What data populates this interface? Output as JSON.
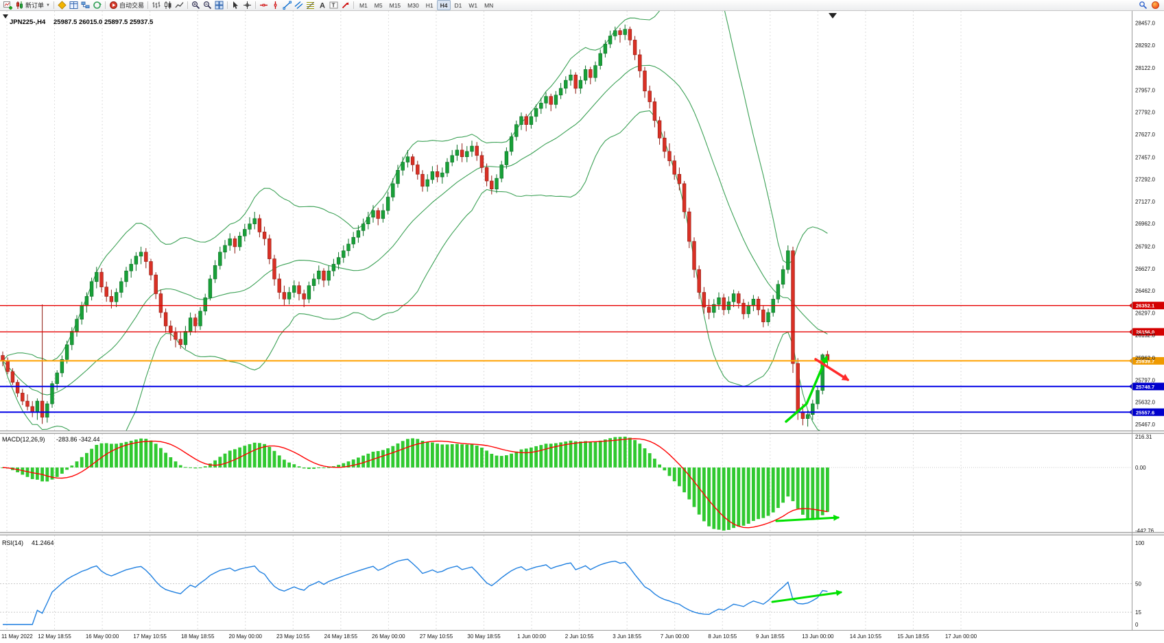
{
  "toolbar": {
    "new_order_label": "新订单",
    "autotrading_label": "自动交易",
    "timeframes": [
      "M1",
      "M5",
      "M15",
      "M30",
      "H1",
      "H4",
      "D1",
      "W1",
      "MN"
    ],
    "active_timeframe": "H4"
  },
  "symbol_info": {
    "symbol_period": "JPN225-,H4",
    "open": "25987.5",
    "high": "26015.0",
    "low": "25897.5",
    "close": "25937.5",
    "ohlc_text": "25987.5 26015.0 25897.5 25937.5"
  },
  "main_chart": {
    "bull_color": "#18a038",
    "bull_border": "#0b6e24",
    "bear_color": "#d93025",
    "bear_border": "#8f1a10",
    "band_color": "#3aa054",
    "price_axis": [
      "28457.0",
      "28292.0",
      "28122.0",
      "27957.0",
      "27792.0",
      "27627.0",
      "27457.0",
      "27292.0",
      "27127.0",
      "26962.0",
      "26792.0",
      "26627.0",
      "26462.0",
      "26297.0",
      "26132.0",
      "25962.0",
      "25797.0",
      "25632.0",
      "25467.0"
    ],
    "levels": [
      {
        "label": "26352.1",
        "value": 26352.1,
        "line_color": "#e60000",
        "badge_color": "#d40000",
        "width": 1.4
      },
      {
        "label": "26156.0",
        "value": 26156.0,
        "line_color": "#e60000",
        "badge_color": "#d40000",
        "width": 1.4
      },
      {
        "label": "25939.7",
        "value": 25939.7,
        "line_color": "#ffa000",
        "badge_color": "#ef9a00",
        "width": 2
      },
      {
        "label": "25748.7",
        "value": 25748.7,
        "line_color": "#0000e6",
        "badge_color": "#0000cc",
        "width": 2
      },
      {
        "label": "25557.6",
        "value": 25557.6,
        "line_color": "#0000e6",
        "badge_color": "#0000cc",
        "width": 2
      }
    ],
    "annotations": [
      {
        "name": "bullish-trend-arrow",
        "color": "#00e100",
        "marker": "green",
        "width": 3.5,
        "points": [
          [
            1146,
            615
          ],
          [
            1176,
            589
          ],
          [
            1205,
            521
          ]
        ]
      },
      {
        "name": "bearish-pullback-arrow",
        "color": "#ff2a2a",
        "marker": "red",
        "width": 3.5,
        "points": [
          [
            1189,
            524
          ],
          [
            1236,
            554
          ]
        ]
      },
      {
        "name": "macd-flat-arrow",
        "color": "#00e100",
        "marker": "green",
        "width": 3,
        "points": [
          [
            1132,
            760
          ],
          [
            1222,
            755
          ]
        ]
      },
      {
        "name": "rsi-recovery-arrow",
        "color": "#00e100",
        "marker": "green",
        "width": 3,
        "points": [
          [
            1126,
            878
          ],
          [
            1226,
            864
          ]
        ]
      }
    ]
  },
  "chart_data": {
    "type": "candlestick",
    "symbol": "JPN225-",
    "timeframe": "H4",
    "price_range": [
      25467.0,
      28457.0
    ],
    "candles": [
      [
        25980,
        26010,
        25900,
        25940
      ],
      [
        25940,
        25965,
        25840,
        25860
      ],
      [
        25860,
        25885,
        25760,
        25780
      ],
      [
        25780,
        25800,
        25670,
        25700
      ],
      [
        25700,
        25730,
        25610,
        25640
      ],
      [
        25640,
        25690,
        25570,
        25600
      ],
      [
        25600,
        25640,
        25520,
        25560
      ],
      [
        25560,
        25660,
        25500,
        25640
      ],
      [
        25640,
        26360,
        25470,
        25520
      ],
      [
        25520,
        25640,
        25480,
        25620
      ],
      [
        25620,
        25790,
        25590,
        25770
      ],
      [
        25770,
        25870,
        25720,
        25850
      ],
      [
        25850,
        25980,
        25820,
        25950
      ],
      [
        25950,
        26090,
        25920,
        26060
      ],
      [
        26060,
        26190,
        26020,
        26160
      ],
      [
        26160,
        26280,
        26120,
        26250
      ],
      [
        26250,
        26380,
        26210,
        26350
      ],
      [
        26350,
        26450,
        26300,
        26420
      ],
      [
        26420,
        26560,
        26390,
        26530
      ],
      [
        26530,
        26640,
        26480,
        26600
      ],
      [
        26600,
        26630,
        26450,
        26490
      ],
      [
        26490,
        26530,
        26380,
        26420
      ],
      [
        26420,
        26470,
        26330,
        26380
      ],
      [
        26380,
        26480,
        26340,
        26450
      ],
      [
        26450,
        26560,
        26410,
        26530
      ],
      [
        26530,
        26640,
        26490,
        26610
      ],
      [
        26610,
        26700,
        26560,
        26660
      ],
      [
        26660,
        26750,
        26610,
        26720
      ],
      [
        26720,
        26790,
        26660,
        26750
      ],
      [
        26750,
        26780,
        26630,
        26680
      ],
      [
        26680,
        26700,
        26540,
        26580
      ],
      [
        26580,
        26600,
        26400,
        26440
      ],
      [
        26440,
        26470,
        26260,
        26300
      ],
      [
        26300,
        26330,
        26150,
        26200
      ],
      [
        26200,
        26240,
        26090,
        26150
      ],
      [
        26150,
        26190,
        26040,
        26100
      ],
      [
        26100,
        26160,
        26030,
        26060
      ],
      [
        26060,
        26200,
        26030,
        26160
      ],
      [
        26160,
        26300,
        26130,
        26260
      ],
      [
        26260,
        26290,
        26150,
        26200
      ],
      [
        26200,
        26340,
        26170,
        26310
      ],
      [
        26310,
        26440,
        26280,
        26410
      ],
      [
        26410,
        26580,
        26390,
        26550
      ],
      [
        26550,
        26690,
        26520,
        26650
      ],
      [
        26650,
        26790,
        26620,
        26750
      ],
      [
        26750,
        26840,
        26700,
        26800
      ],
      [
        26800,
        26890,
        26760,
        26850
      ],
      [
        26850,
        26870,
        26740,
        26790
      ],
      [
        26790,
        26900,
        26760,
        26870
      ],
      [
        26870,
        26960,
        26830,
        26920
      ],
      [
        26920,
        27010,
        26880,
        26960
      ],
      [
        26960,
        27050,
        26920,
        27000
      ],
      [
        27000,
        27030,
        26860,
        26900
      ],
      [
        26900,
        26940,
        26800,
        26850
      ],
      [
        26850,
        26880,
        26660,
        26700
      ],
      [
        26700,
        26730,
        26500,
        26550
      ],
      [
        26550,
        26590,
        26400,
        26450
      ],
      [
        26450,
        26500,
        26350,
        26400
      ],
      [
        26400,
        26490,
        26360,
        26450
      ],
      [
        26450,
        26540,
        26410,
        26500
      ],
      [
        26500,
        26530,
        26390,
        26440
      ],
      [
        26440,
        26470,
        26340,
        26400
      ],
      [
        26400,
        26530,
        26370,
        26500
      ],
      [
        26500,
        26590,
        26460,
        26550
      ],
      [
        26550,
        26650,
        26510,
        26610
      ],
      [
        26610,
        26630,
        26490,
        26540
      ],
      [
        26540,
        26650,
        26500,
        26610
      ],
      [
        26610,
        26700,
        26570,
        26660
      ],
      [
        26660,
        26750,
        26620,
        26710
      ],
      [
        26710,
        26800,
        26670,
        26760
      ],
      [
        26760,
        26850,
        26720,
        26810
      ],
      [
        26810,
        26900,
        26780,
        26860
      ],
      [
        26860,
        26950,
        26820,
        26910
      ],
      [
        26910,
        27000,
        26870,
        26960
      ],
      [
        26960,
        27050,
        26920,
        27010
      ],
      [
        27010,
        27100,
        26970,
        27060
      ],
      [
        27060,
        27080,
        26950,
        27000
      ],
      [
        27000,
        27110,
        26970,
        27060
      ],
      [
        27060,
        27200,
        27030,
        27160
      ],
      [
        27160,
        27300,
        27130,
        27260
      ],
      [
        27260,
        27400,
        27230,
        27360
      ],
      [
        27360,
        27460,
        27320,
        27420
      ],
      [
        27420,
        27510,
        27380,
        27460
      ],
      [
        27460,
        27480,
        27350,
        27400
      ],
      [
        27400,
        27430,
        27290,
        27330
      ],
      [
        27330,
        27360,
        27200,
        27240
      ],
      [
        27240,
        27330,
        27200,
        27290
      ],
      [
        27290,
        27390,
        27260,
        27350
      ],
      [
        27350,
        27400,
        27270,
        27310
      ],
      [
        27310,
        27380,
        27260,
        27340
      ],
      [
        27340,
        27450,
        27310,
        27420
      ],
      [
        27420,
        27510,
        27390,
        27470
      ],
      [
        27470,
        27550,
        27430,
        27510
      ],
      [
        27510,
        27560,
        27420,
        27460
      ],
      [
        27460,
        27540,
        27420,
        27500
      ],
      [
        27500,
        27580,
        27460,
        27540
      ],
      [
        27540,
        27570,
        27430,
        27470
      ],
      [
        27470,
        27500,
        27340,
        27380
      ],
      [
        27380,
        27410,
        27240,
        27280
      ],
      [
        27280,
        27320,
        27180,
        27220
      ],
      [
        27220,
        27330,
        27190,
        27300
      ],
      [
        27300,
        27430,
        27270,
        27400
      ],
      [
        27400,
        27530,
        27370,
        27500
      ],
      [
        27500,
        27640,
        27470,
        27610
      ],
      [
        27610,
        27730,
        27580,
        27700
      ],
      [
        27700,
        27790,
        27660,
        27760
      ],
      [
        27760,
        27780,
        27650,
        27700
      ],
      [
        27700,
        27800,
        27670,
        27760
      ],
      [
        27760,
        27850,
        27720,
        27820
      ],
      [
        27820,
        27900,
        27780,
        27860
      ],
      [
        27860,
        27940,
        27820,
        27910
      ],
      [
        27910,
        27930,
        27800,
        27850
      ],
      [
        27850,
        27950,
        27820,
        27920
      ],
      [
        27920,
        28010,
        27890,
        27970
      ],
      [
        27970,
        28060,
        27930,
        28030
      ],
      [
        28030,
        28110,
        27990,
        28070
      ],
      [
        28070,
        28090,
        27930,
        27970
      ],
      [
        27970,
        28060,
        27930,
        28030
      ],
      [
        28030,
        28140,
        28000,
        28110
      ],
      [
        28110,
        28130,
        28000,
        28050
      ],
      [
        28050,
        28170,
        28020,
        28140
      ],
      [
        28140,
        28260,
        28110,
        28230
      ],
      [
        28230,
        28330,
        28200,
        28300
      ],
      [
        28300,
        28400,
        28270,
        28360
      ],
      [
        28360,
        28430,
        28330,
        28400
      ],
      [
        28400,
        28420,
        28310,
        28370
      ],
      [
        28370,
        28445,
        28330,
        28410
      ],
      [
        28410,
        28430,
        28290,
        28330
      ],
      [
        28330,
        28360,
        28180,
        28220
      ],
      [
        28220,
        28260,
        28050,
        28100
      ],
      [
        28100,
        28130,
        27900,
        27950
      ],
      [
        27950,
        27990,
        27820,
        27870
      ],
      [
        27870,
        27900,
        27680,
        27730
      ],
      [
        27730,
        27760,
        27550,
        27600
      ],
      [
        27600,
        27650,
        27450,
        27500
      ],
      [
        27500,
        27560,
        27390,
        27430
      ],
      [
        27430,
        27470,
        27290,
        27330
      ],
      [
        27330,
        27380,
        27210,
        27260
      ],
      [
        27260,
        27280,
        27000,
        27050
      ],
      [
        27050,
        27080,
        26780,
        26830
      ],
      [
        26830,
        26860,
        26560,
        26620
      ],
      [
        26620,
        26650,
        26400,
        26450
      ],
      [
        26450,
        26490,
        26290,
        26340
      ],
      [
        26340,
        26400,
        26250,
        26300
      ],
      [
        26300,
        26400,
        26260,
        26360
      ],
      [
        26360,
        26450,
        26320,
        26410
      ],
      [
        26410,
        26440,
        26280,
        26320
      ],
      [
        26320,
        26420,
        26290,
        26380
      ],
      [
        26380,
        26470,
        26340,
        26440
      ],
      [
        26440,
        26460,
        26330,
        26370
      ],
      [
        26370,
        26400,
        26250,
        26290
      ],
      [
        26290,
        26380,
        26260,
        26350
      ],
      [
        26350,
        26430,
        26310,
        26400
      ],
      [
        26400,
        26420,
        26280,
        26320
      ],
      [
        26320,
        26350,
        26190,
        26230
      ],
      [
        26230,
        26330,
        26200,
        26300
      ],
      [
        26300,
        26430,
        26270,
        26400
      ],
      [
        26400,
        26540,
        26370,
        26510
      ],
      [
        26510,
        26650,
        26480,
        26620
      ],
      [
        26620,
        26800,
        26590,
        26760
      ],
      [
        26760,
        26790,
        25850,
        25920
      ],
      [
        25920,
        25960,
        25500,
        25560
      ],
      [
        25560,
        25620,
        25460,
        25510
      ],
      [
        25510,
        25570,
        25450,
        25540
      ],
      [
        25540,
        25650,
        25500,
        25620
      ],
      [
        25620,
        25750,
        25580,
        25720
      ],
      [
        25720,
        25995,
        25690,
        25985
      ],
      [
        25987.5,
        26015,
        25897.5,
        25937.5
      ]
    ],
    "indicators": {
      "bollinger": {
        "period": 20,
        "deviation": 2
      },
      "macd": {
        "name": "MACD(12,26,9)",
        "values_text": "-283.86 -342.44",
        "fast": 12,
        "slow": 26,
        "signal": 9,
        "histogram_color": "#30c930",
        "signal_color": "#ff0000",
        "axis": [
          {
            "label": "216.31",
            "value": 216.31
          },
          {
            "label": "0.00",
            "value": 0
          },
          {
            "label": "-442.76",
            "value": -442.76
          }
        ]
      },
      "rsi": {
        "name": "RSI(14)",
        "value_text": "41.2464",
        "period": 14,
        "line_color": "#1e7fe0",
        "levels": [
          50,
          15
        ],
        "axis": [
          {
            "label": "100",
            "value": 100
          },
          {
            "label": "50",
            "value": 50
          },
          {
            "label": "15",
            "value": 15
          },
          {
            "label": "0",
            "value": 0
          }
        ]
      }
    }
  },
  "time_axis": {
    "labels": [
      "11 May 2022",
      "12 May 18:55",
      "16 May 00:00",
      "17 May 10:55",
      "18 May 18:55",
      "20 May 00:00",
      "23 May 10:55",
      "24 May 18:55",
      "26 May 00:00",
      "27 May 10:55",
      "30 May 18:55",
      "1 Jun 00:00",
      "2 Jun 10:55",
      "3 Jun 18:55",
      "7 Jun 00:00",
      "8 Jun 10:55",
      "9 Jun 18:55",
      "13 Jun 00:00",
      "14 Jun 10:55",
      "15 Jun 18:55",
      "17 Jun 00:00"
    ]
  }
}
